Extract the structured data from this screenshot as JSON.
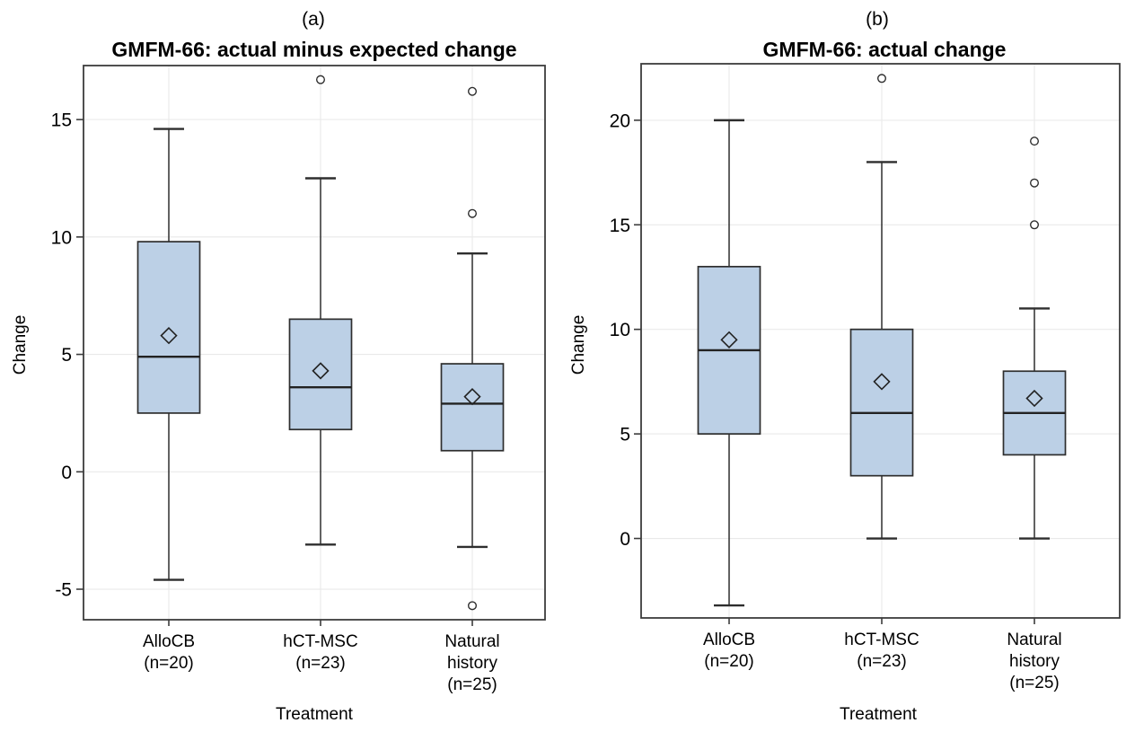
{
  "colors": {
    "box_fill": "#bcd0e6",
    "box_stroke": "#2e2e2e",
    "median_stroke": "#222222",
    "grid": "#e9e9e9",
    "axis": "#3c3c3c",
    "text": "#000000",
    "background": "#ffffff"
  },
  "chart_data": [
    {
      "type": "boxplot",
      "panel": "(a)",
      "title": "GMFM-66: actual minus expected change",
      "xlabel": "Treatment",
      "ylabel": "Change",
      "ylim": [
        -6.3,
        17.3
      ],
      "yticks": [
        15,
        10,
        5,
        0,
        -5
      ],
      "grid": "horizontal-and-vertical",
      "legend": "none",
      "categories": [
        [
          "AlloCB",
          "(n=20)"
        ],
        [
          "hCT-MSC",
          "(n=23)"
        ],
        [
          "Natural",
          "history",
          "(n=25)"
        ]
      ],
      "series": [
        {
          "name": "AlloCB (n=20)",
          "whisker_low": -4.6,
          "q1": 2.5,
          "median": 4.9,
          "q3": 9.8,
          "whisker_high": 14.6,
          "mean": 5.8,
          "outliers": []
        },
        {
          "name": "hCT-MSC (n=23)",
          "whisker_low": -3.1,
          "q1": 1.8,
          "median": 3.6,
          "q3": 6.5,
          "whisker_high": 12.5,
          "mean": 4.3,
          "outliers": [
            16.7
          ]
        },
        {
          "name": "Natural history (n=25)",
          "whisker_low": -3.2,
          "q1": 0.9,
          "median": 2.9,
          "q3": 4.6,
          "whisker_high": 9.3,
          "mean": 3.2,
          "outliers": [
            16.2,
            11.0,
            -5.7
          ]
        }
      ]
    },
    {
      "type": "boxplot",
      "panel": "(b)",
      "title": "GMFM-66: actual change",
      "xlabel": "Treatment",
      "ylabel": "Change",
      "ylim": [
        -3.8,
        22.7
      ],
      "yticks": [
        20,
        15,
        10,
        5,
        0
      ],
      "grid": "horizontal-and-vertical",
      "legend": "none",
      "categories": [
        [
          "AlloCB",
          "(n=20)"
        ],
        [
          "hCT-MSC",
          "(n=23)"
        ],
        [
          "Natural",
          "history",
          "(n=25)"
        ]
      ],
      "series": [
        {
          "name": "AlloCB (n=20)",
          "whisker_low": -3.2,
          "q1": 5.0,
          "median": 9.0,
          "q3": 13.0,
          "whisker_high": 20.0,
          "mean": 9.5,
          "outliers": []
        },
        {
          "name": "hCT-MSC (n=23)",
          "whisker_low": 0.0,
          "q1": 3.0,
          "median": 6.0,
          "q3": 10.0,
          "whisker_high": 18.0,
          "mean": 7.5,
          "outliers": [
            22.0
          ]
        },
        {
          "name": "Natural history (n=25)",
          "whisker_low": 0.0,
          "q1": 4.0,
          "median": 6.0,
          "q3": 8.0,
          "whisker_high": 11.0,
          "mean": 6.7,
          "outliers": [
            15.0,
            17.0,
            19.0
          ]
        }
      ]
    }
  ]
}
